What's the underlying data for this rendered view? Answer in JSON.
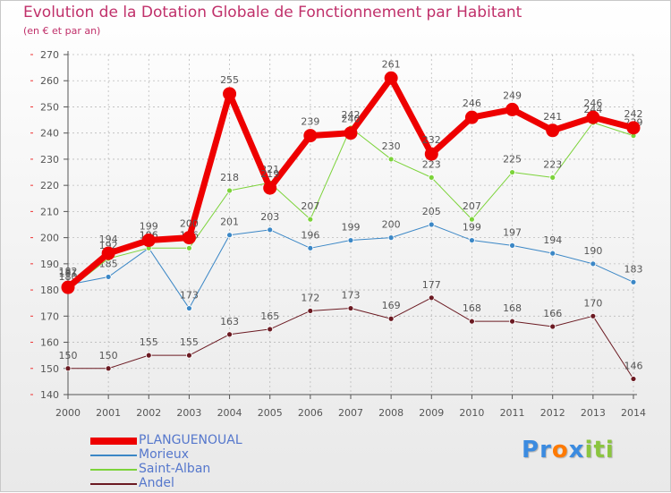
{
  "colors": {
    "title": "#c0306a",
    "axis": "#555555",
    "grid": "#bbbbbb",
    "label": "#555555",
    "legend_text": "#5577cc"
  },
  "brand": {
    "letters": [
      "P",
      "r",
      "o",
      "x",
      "i",
      "t",
      "i"
    ],
    "colors": [
      "#3b8be0",
      "#3b8be0",
      "#ff7a00",
      "#3b8be0",
      "#8bc53f",
      "#8bc53f",
      "#8bc53f"
    ]
  },
  "chart_data": {
    "type": "line",
    "title": "Evolution de la Dotation Globale de Fonctionnement par Habitant",
    "subtitle": "(en € et par an)",
    "xlabel": "",
    "ylabel": "",
    "ylim": [
      140,
      270
    ],
    "yticks": [
      140,
      150,
      160,
      170,
      180,
      190,
      200,
      210,
      220,
      230,
      240,
      250,
      260,
      270
    ],
    "grid": true,
    "legend_position": "bottom-left",
    "x": [
      "2000",
      "2001",
      "2002",
      "2003",
      "2004",
      "2005",
      "2006",
      "2007",
      "2008",
      "2009",
      "2010",
      "2011",
      "2012",
      "2013",
      "2014"
    ],
    "series": [
      {
        "name": "Andel",
        "color": "#6b1a22",
        "values": [
          150,
          150,
          155,
          155,
          163,
          165,
          172,
          173,
          169,
          177,
          168,
          168,
          166,
          170,
          146
        ]
      },
      {
        "name": "Morieux",
        "color": "#3b87c6",
        "values": [
          182,
          185,
          196,
          173,
          201,
          203,
          196,
          199,
          200,
          205,
          199,
          197,
          194,
          190,
          183
        ]
      },
      {
        "name": "Saint-Alban",
        "color": "#7cd33a",
        "values": [
          180,
          192,
          196,
          196,
          218,
          221,
          207,
          242,
          230,
          223,
          207,
          225,
          223,
          244,
          239
        ]
      },
      {
        "name": "PLANGUENOUAL",
        "color": "#ee0000",
        "values": [
          181,
          194,
          199,
          200,
          255,
          219,
          239,
          240,
          261,
          232,
          246,
          249,
          241,
          246,
          242
        ]
      }
    ],
    "legend_order": [
      "PLANGUENOUAL",
      "Morieux",
      "Saint-Alban",
      "Andel"
    ]
  }
}
